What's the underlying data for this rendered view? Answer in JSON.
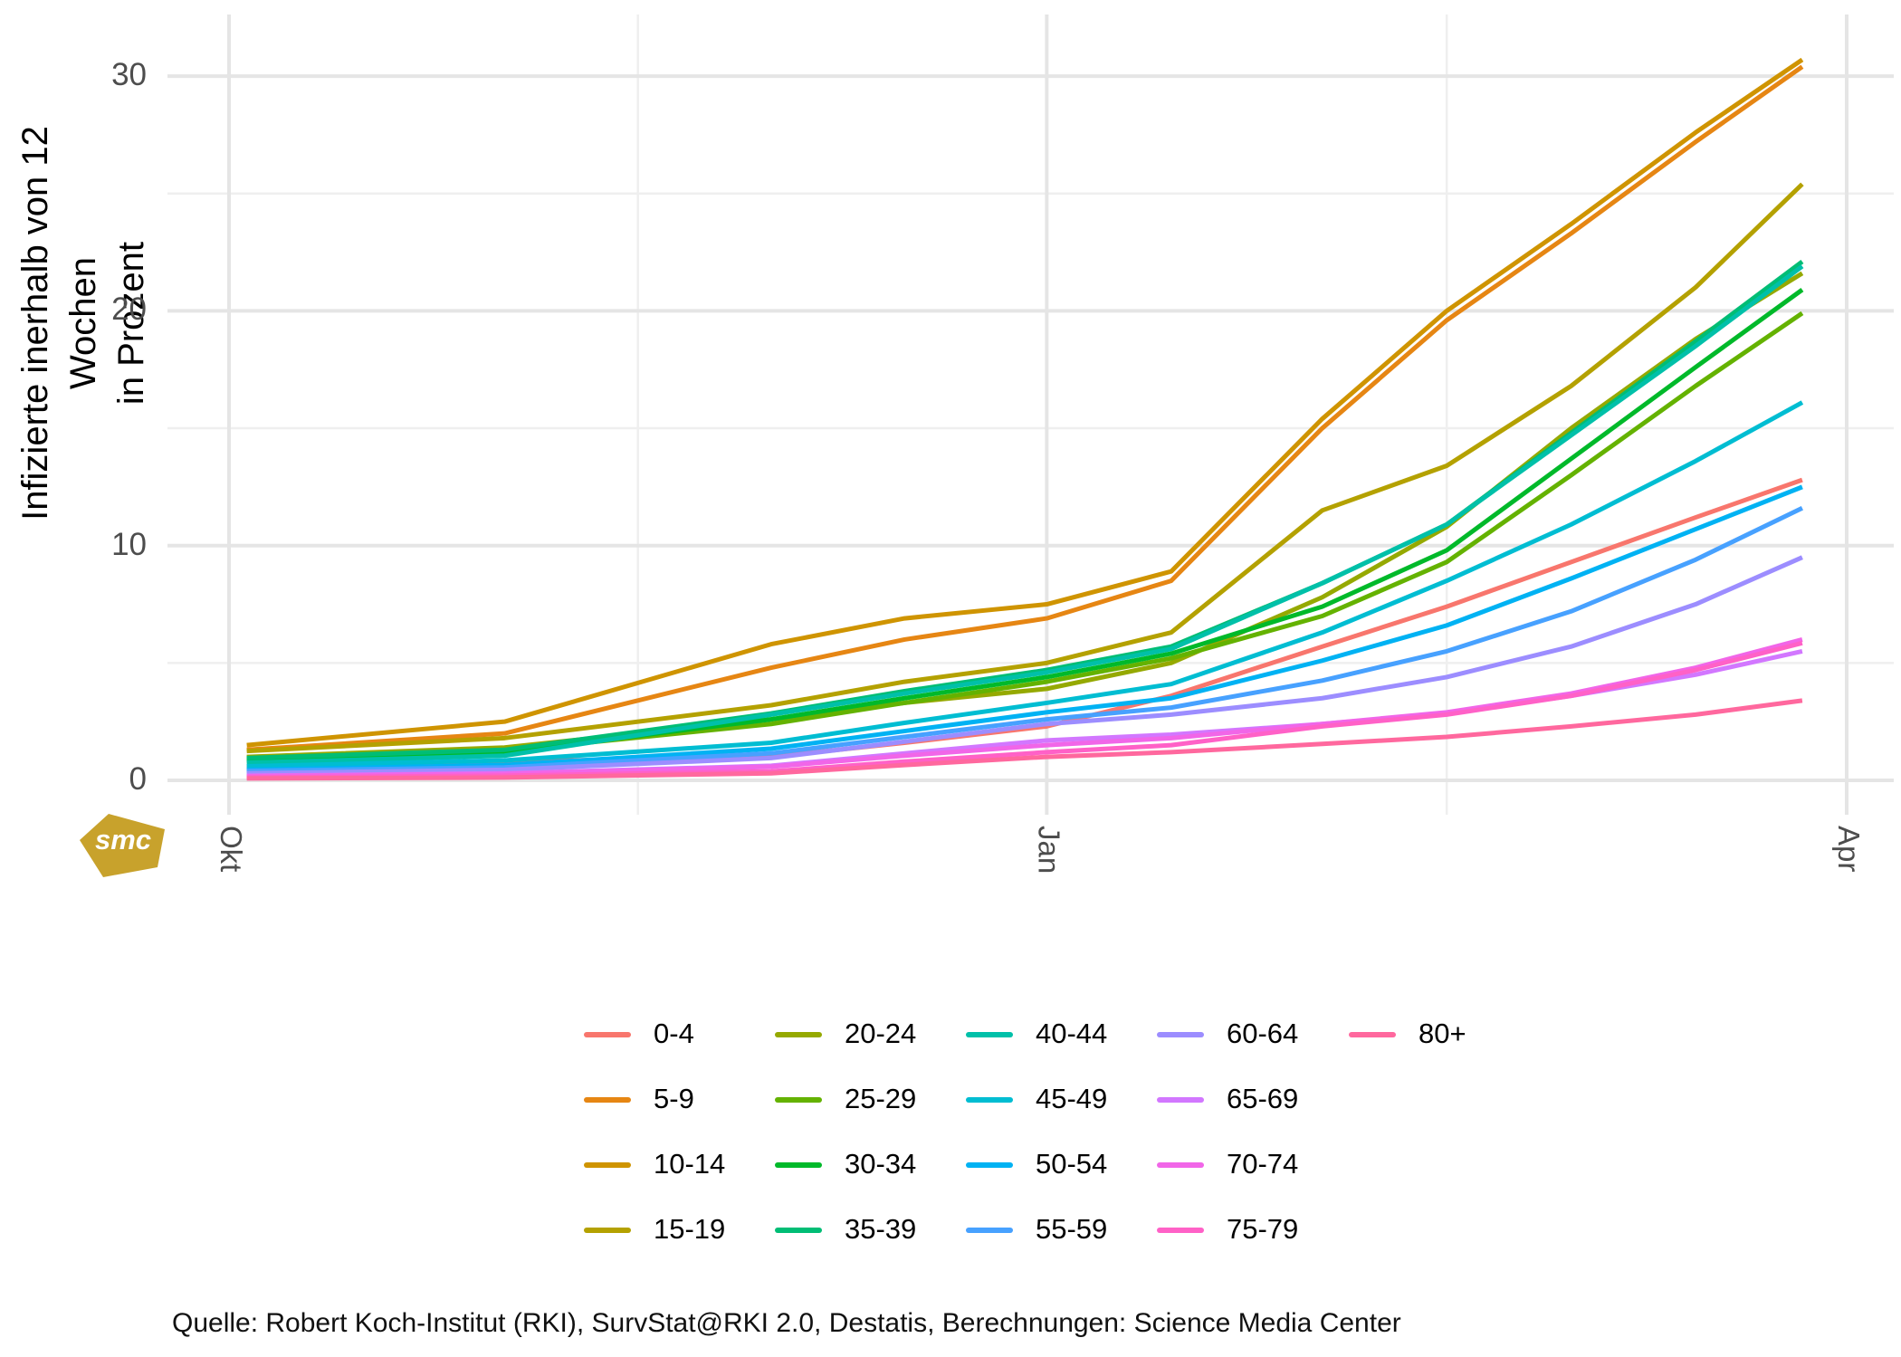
{
  "y_title": {
    "line1": "Infizierte inerhalb von 12 Wochen",
    "line2": "in Prozent"
  },
  "caption": "Quelle: Robert Koch-Institut (RKI), SurvStat@RKI 2.0, Destatis, Berechnungen: Science Media Center",
  "logo": {
    "text": "smc",
    "color": "#C8A22C"
  },
  "axes": {
    "y_major_ticks": [
      0,
      10,
      20,
      30
    ],
    "y_minor_ticks": [
      5,
      15,
      25
    ],
    "x_ticks": [
      {
        "label": "Okt",
        "day": 0
      },
      {
        "label": "Jan",
        "day": 92
      },
      {
        "label": "Apr",
        "day": 182
      }
    ],
    "x_minor_days": [
      46,
      137
    ],
    "grid_major_color": "#E5E5E5",
    "grid_minor_color": "#EFEFEF",
    "tick_label_color": "#4D4D4D"
  },
  "chart_data": {
    "type": "line",
    "title": "",
    "ylabel": "Infizierte inerhalb von 12 Wochen in Prozent",
    "xlabel": "",
    "ylim": [
      0,
      31.5
    ],
    "x_unit": "days since Oct 1",
    "x_axis_labels": [
      "Okt",
      "Jan",
      "Apr"
    ],
    "grid": true,
    "legend_position": "bottom",
    "legend_rows": 4,
    "x_days": [
      2,
      31,
      61,
      76,
      92,
      106,
      123,
      137,
      151,
      165,
      177
    ],
    "series": [
      {
        "name": "0-4",
        "color": "#F8766D",
        "values": [
          0.55,
          0.8,
          1.0,
          1.6,
          2.3,
          3.6,
          5.7,
          7.4,
          9.3,
          11.2,
          12.8
        ]
      },
      {
        "name": "5-9",
        "color": "#E68613",
        "values": [
          1.3,
          2.0,
          4.8,
          6.0,
          6.9,
          8.5,
          15.0,
          19.6,
          23.3,
          27.2,
          30.4
        ]
      },
      {
        "name": "10-14",
        "color": "#CF9400",
        "values": [
          1.5,
          2.5,
          5.8,
          6.9,
          7.5,
          8.9,
          15.4,
          20.0,
          23.7,
          27.6,
          30.7
        ]
      },
      {
        "name": "15-19",
        "color": "#B4A100",
        "values": [
          1.25,
          1.8,
          3.2,
          4.2,
          5.0,
          6.3,
          11.5,
          13.4,
          16.8,
          21.0,
          25.4
        ]
      },
      {
        "name": "20-24",
        "color": "#95A900",
        "values": [
          1.0,
          1.4,
          2.6,
          3.3,
          3.9,
          5.0,
          7.8,
          10.8,
          15.0,
          18.8,
          21.6
        ]
      },
      {
        "name": "25-29",
        "color": "#64B200",
        "values": [
          0.85,
          1.25,
          2.4,
          3.3,
          4.2,
          5.2,
          7.0,
          9.3,
          13.0,
          16.8,
          19.9
        ]
      },
      {
        "name": "30-34",
        "color": "#00B92A",
        "values": [
          0.9,
          1.2,
          2.6,
          3.5,
          4.4,
          5.4,
          7.4,
          9.8,
          13.7,
          17.6,
          20.9
        ]
      },
      {
        "name": "35-39",
        "color": "#00BD75",
        "values": [
          0.95,
          1.3,
          2.85,
          3.8,
          4.7,
          5.7,
          8.4,
          10.9,
          14.8,
          18.7,
          22.1
        ]
      },
      {
        "name": "40-44",
        "color": "#00C0A9",
        "values": [
          0.75,
          1.05,
          2.8,
          3.7,
          4.6,
          5.6,
          8.4,
          10.9,
          14.7,
          18.5,
          21.9
        ]
      },
      {
        "name": "45-49",
        "color": "#00BDD2",
        "values": [
          0.6,
          0.85,
          1.6,
          2.45,
          3.3,
          4.1,
          6.3,
          8.5,
          10.9,
          13.6,
          16.1
        ]
      },
      {
        "name": "50-54",
        "color": "#00B2F3",
        "values": [
          0.45,
          0.65,
          1.35,
          2.1,
          2.9,
          3.5,
          5.1,
          6.6,
          8.6,
          10.7,
          12.5
        ]
      },
      {
        "name": "55-59",
        "color": "#47A1FF",
        "values": [
          0.4,
          0.55,
          1.15,
          1.85,
          2.6,
          3.1,
          4.25,
          5.5,
          7.2,
          9.4,
          11.6
        ]
      },
      {
        "name": "60-64",
        "color": "#9C8DFF",
        "values": [
          0.3,
          0.45,
          0.95,
          1.65,
          2.4,
          2.8,
          3.5,
          4.4,
          5.7,
          7.5,
          9.5
        ]
      },
      {
        "name": "65-69",
        "color": "#D277FF",
        "values": [
          0.2,
          0.3,
          0.62,
          1.15,
          1.7,
          1.95,
          2.4,
          2.85,
          3.6,
          4.5,
          5.5
        ]
      },
      {
        "name": "70-74",
        "color": "#F166E8",
        "values": [
          0.18,
          0.28,
          0.58,
          1.05,
          1.5,
          1.8,
          2.4,
          2.9,
          3.7,
          4.8,
          6.0
        ]
      },
      {
        "name": "75-79",
        "color": "#FF61C7",
        "values": [
          0.12,
          0.2,
          0.38,
          0.8,
          1.2,
          1.5,
          2.3,
          2.8,
          3.6,
          4.7,
          5.85
        ]
      },
      {
        "name": "80+",
        "color": "#FF689E",
        "values": [
          0.08,
          0.12,
          0.3,
          0.65,
          1.0,
          1.2,
          1.55,
          1.85,
          2.3,
          2.8,
          3.4
        ]
      }
    ]
  }
}
